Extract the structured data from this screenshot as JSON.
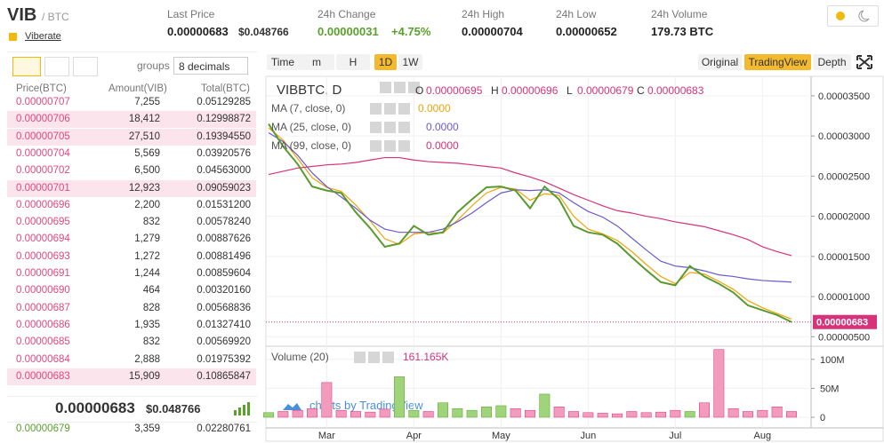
{
  "header": {
    "symbol": "VIB",
    "quote": "/ BTC",
    "project": "Viberate",
    "stats": [
      {
        "label": "Last Price",
        "value": "0.00000683",
        "sub": "$0.048766"
      },
      {
        "label": "24h Change",
        "value": "0.00000031",
        "sub": "+4.75%"
      },
      {
        "label": "24h High",
        "value": "0.00000704"
      },
      {
        "label": "24h Low",
        "value": "0.00000652"
      },
      {
        "label": "24h Volume",
        "value": "179.73 BTC"
      }
    ]
  },
  "order_book": {
    "groups_label": "groups",
    "decimals": "8 decimals",
    "columns": [
      "Price(BTC)",
      "Amount(VIB)",
      "Total(BTC)"
    ],
    "asks": [
      [
        "0.00000707",
        "7,255",
        "0.05129285"
      ],
      [
        "0.00000706",
        "18,412",
        "0.12998872"
      ],
      [
        "0.00000705",
        "27,510",
        "0.19394550"
      ],
      [
        "0.00000704",
        "5,569",
        "0.03920576"
      ],
      [
        "0.00000702",
        "6,500",
        "0.04563000"
      ],
      [
        "0.00000701",
        "12,923",
        "0.09059023"
      ],
      [
        "0.00000696",
        "2,200",
        "0.01531200"
      ],
      [
        "0.00000695",
        "832",
        "0.00578240"
      ],
      [
        "0.00000694",
        "1,279",
        "0.00887626"
      ],
      [
        "0.00000693",
        "1,272",
        "0.00881496"
      ],
      [
        "0.00000691",
        "1,244",
        "0.00859604"
      ],
      [
        "0.00000690",
        "464",
        "0.00320160"
      ],
      [
        "0.00000687",
        "828",
        "0.00568836"
      ],
      [
        "0.00000686",
        "1,935",
        "0.01327410"
      ],
      [
        "0.00000685",
        "832",
        "0.00569920"
      ],
      [
        "0.00000684",
        "2,888",
        "0.01975392"
      ],
      [
        "0.00000683",
        "15,909",
        "0.10865847"
      ]
    ],
    "last_price": "0.00000683",
    "last_price_usd": "$0.048766",
    "bids": [
      [
        "0.00000679",
        "3,359",
        "0.02280761"
      ]
    ]
  },
  "toolbar": {
    "intervals": [
      "Time",
      "m",
      "H",
      "1D",
      "1W"
    ],
    "views": [
      "Original",
      "TradingView",
      "Depth"
    ]
  },
  "chart_data": {
    "type": "line",
    "title": "VIBBTC, D",
    "ohlc": [
      {
        "label": "O",
        "value": "0.00000695"
      },
      {
        "label": "H",
        "value": "0.00000696"
      },
      {
        "label": "L",
        "value": "0.00000679"
      },
      {
        "label": "C",
        "value": "0.00000683"
      }
    ],
    "categories": [
      null,
      null,
      null,
      null,
      "Mar",
      null,
      null,
      null,
      null,
      null,
      "Apr",
      null,
      null,
      null,
      null,
      null,
      "May",
      null,
      null,
      null,
      null,
      null,
      "Jun",
      null,
      null,
      null,
      null,
      null,
      "Jul",
      null,
      null,
      null,
      null,
      null,
      "Aug",
      null,
      null
    ],
    "values": [
      3.15e-05,
      2.87e-05,
      2.65e-05,
      2.37e-05,
      2.32e-05,
      2.29e-05,
      2.05e-05,
      1.85e-05,
      1.62e-05,
      1.66e-05,
      1.88e-05,
      1.77e-05,
      1.8e-05,
      2.05e-05,
      2.21e-05,
      2.36e-05,
      2.37e-05,
      2.32e-05,
      2.1e-05,
      2.37e-05,
      2.21e-05,
      1.88e-05,
      1.8e-05,
      1.77e-05,
      1.66e-05,
      1.49e-05,
      1.33e-05,
      1.18e-05,
      1.14e-05,
      1.38e-05,
      1.25e-05,
      1.16e-05,
      1.05e-05,
      8.9e-06,
      8.3e-06,
      7.7e-06,
      6.83e-06
    ],
    "color": "#5a9a2f",
    "series": [
      {
        "name": "MA (7, close, 0)",
        "legend_value": "0.0000",
        "color": "#f0a30a",
        "values": [
          3.1e-05,
          2.95e-05,
          2.72e-05,
          2.48e-05,
          2.36e-05,
          2.31e-05,
          2.14e-05,
          1.94e-05,
          1.72e-05,
          1.65e-05,
          1.78e-05,
          1.8e-05,
          1.79e-05,
          1.95e-05,
          2.13e-05,
          2.29e-05,
          2.36e-05,
          2.34e-05,
          2.2e-05,
          2.28e-05,
          2.26e-05,
          2e-05,
          1.84e-05,
          1.78e-05,
          1.7e-05,
          1.56e-05,
          1.4e-05,
          1.25e-05,
          1.16e-05,
          1.3e-05,
          1.28e-05,
          1.19e-05,
          1.09e-05,
          9.5e-06,
          8.6e-06,
          7.9e-06,
          7.2e-06
        ]
      },
      {
        "name": "MA (25, close, 0)",
        "legend_value": "0.0000",
        "color": "#6a5acd",
        "values": [
          3.04e-05,
          2.93e-05,
          2.76e-05,
          2.54e-05,
          2.37e-05,
          2.24e-05,
          2.1e-05,
          1.95e-05,
          1.84e-05,
          1.8e-05,
          1.8e-05,
          1.8e-05,
          1.84e-05,
          1.93e-05,
          2.04e-05,
          2.17e-05,
          2.29e-05,
          2.33e-05,
          2.32e-05,
          2.33e-05,
          2.29e-05,
          2.17e-05,
          2.06e-05,
          1.99e-05,
          1.88e-05,
          1.73e-05,
          1.58e-05,
          1.44e-05,
          1.38e-05,
          1.36e-05,
          1.32e-05,
          1.27e-05,
          1.25e-05,
          1.22e-05,
          1.2e-05,
          1.19e-05,
          1.18e-05
        ]
      },
      {
        "name": "MA (99, close, 0)",
        "legend_value": "0.0000",
        "color": "#d6337a",
        "values": [
          2.52e-05,
          2.56e-05,
          2.6e-05,
          2.62e-05,
          2.64e-05,
          2.65e-05,
          2.67e-05,
          2.7e-05,
          2.73e-05,
          2.73e-05,
          2.7e-05,
          2.68e-05,
          2.67e-05,
          2.66e-05,
          2.64e-05,
          2.62e-05,
          2.6e-05,
          2.54e-05,
          2.49e-05,
          2.43e-05,
          2.35e-05,
          2.27e-05,
          2.2e-05,
          2.13e-05,
          2.07e-05,
          2.04e-05,
          2e-05,
          1.97e-05,
          1.93e-05,
          1.9e-05,
          1.87e-05,
          1.82e-05,
          1.77e-05,
          1.71e-05,
          1.62e-05,
          1.56e-05,
          1.51e-05
        ]
      }
    ],
    "ylim": [
      4.7e-06,
      3.72e-05
    ],
    "yticks": [
      {
        "value": 3.5e-05,
        "label": "0.00003500"
      },
      {
        "value": 3e-05,
        "label": "0.00003000"
      },
      {
        "value": 2.5e-05,
        "label": "0.00002500"
      },
      {
        "value": 2e-05,
        "label": "0.00002000"
      },
      {
        "value": 1.5e-05,
        "label": "0.00001500"
      },
      {
        "value": 1e-05,
        "label": "0.00001000"
      },
      {
        "value": 5e-06,
        "label": "0.00000500"
      }
    ],
    "grid": true,
    "volume": {
      "name": "Volume (20)",
      "legend_value": "161.165K",
      "up_color": "#9fd47a",
      "down_color": "#f29bbd",
      "values": [
        8000000,
        10000000,
        12000000,
        15000000,
        60000000,
        12000000,
        10000000,
        9000000,
        14000000,
        70000000,
        12000000,
        10000000,
        25000000,
        15000000,
        12000000,
        18000000,
        20000000,
        15000000,
        12000000,
        40000000,
        18000000,
        10000000,
        8000000,
        7000000,
        6000000,
        10000000,
        8000000,
        9000000,
        12000000,
        10000000,
        25000000,
        117000000,
        15000000,
        10000000,
        12000000,
        18000000,
        10000000
      ],
      "ylim": [
        0,
        115000000
      ],
      "yticks": [
        {
          "value": 100000000,
          "label": "100M"
        },
        {
          "value": 50000000,
          "label": "50M"
        },
        0
      ]
    },
    "watermark": "charts by TradingView"
  }
}
